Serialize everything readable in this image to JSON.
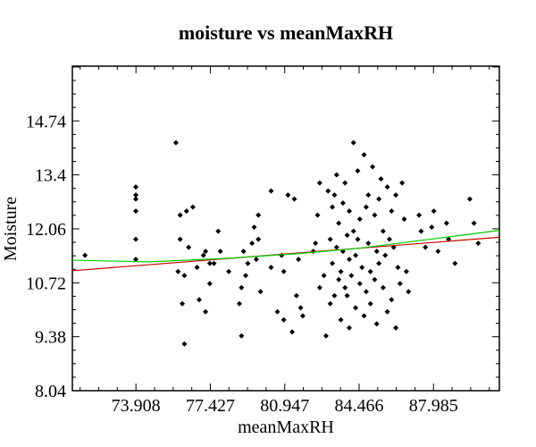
{
  "chart_data": {
    "type": "scatter",
    "title": "moisture vs meanMaxRH",
    "xlabel": "meanMaxRH",
    "ylabel": "Moisture",
    "xlim": [
      70.9,
      91.1
    ],
    "ylim": [
      8.04,
      16.1
    ],
    "xticks": [
      73.908,
      77.427,
      80.947,
      84.466,
      87.985
    ],
    "yticks": [
      8.04,
      9.38,
      10.72,
      12.06,
      13.4,
      14.74
    ],
    "grid": false,
    "legend": "none",
    "colors": {
      "points": "#000000",
      "linear_fit": "#cc0000",
      "smooth_fit": "#00cc00",
      "axes": "#000000"
    },
    "series": [
      {
        "kind": "points",
        "x": [
          71.5,
          73.9,
          73.9,
          73.9,
          73.9,
          73.9,
          73.9,
          75.8,
          75.9,
          76.0,
          76.0,
          76.1,
          76.2,
          76.2,
          76.3,
          76.4,
          76.6,
          76.8,
          76.9,
          77.1,
          77.2,
          77.2,
          77.4,
          77.4,
          77.6,
          77.8,
          77.9,
          78.3,
          78.8,
          78.9,
          78.9,
          79.0,
          79.1,
          79.2,
          79.4,
          79.5,
          79.6,
          79.7,
          79.7,
          79.8,
          80.3,
          80.3,
          80.6,
          80.8,
          80.9,
          80.9,
          81.1,
          81.3,
          81.4,
          81.5,
          81.6,
          81.7,
          81.8,
          82.3,
          82.4,
          82.5,
          82.6,
          82.6,
          82.8,
          82.9,
          83.0,
          83.1,
          83.1,
          83.2,
          83.2,
          83.3,
          83.3,
          83.4,
          83.4,
          83.5,
          83.5,
          83.6,
          83.6,
          83.7,
          83.7,
          83.8,
          83.8,
          83.9,
          83.9,
          84.0,
          84.0,
          84.0,
          84.1,
          84.2,
          84.2,
          84.3,
          84.3,
          84.4,
          84.4,
          84.5,
          84.5,
          84.6,
          84.7,
          84.7,
          84.8,
          84.8,
          84.9,
          84.9,
          85.0,
          85.0,
          85.1,
          85.2,
          85.2,
          85.3,
          85.3,
          85.4,
          85.4,
          85.5,
          85.6,
          85.6,
          85.7,
          85.8,
          85.8,
          85.9,
          86.0,
          86.0,
          86.1,
          86.2,
          86.2,
          86.3,
          86.4,
          86.5,
          86.6,
          86.7,
          86.8,
          87.3,
          87.4,
          87.6,
          87.9,
          88.0,
          88.2,
          88.6,
          88.7,
          89.0,
          89.7,
          89.9,
          90.1
        ],
        "y": [
          11.4,
          12.9,
          13.1,
          12.8,
          12.5,
          11.8,
          11.3,
          14.2,
          11.0,
          12.4,
          11.8,
          10.2,
          9.2,
          10.9,
          12.5,
          11.6,
          12.6,
          11.1,
          10.3,
          11.4,
          10.0,
          11.5,
          11.2,
          10.7,
          11.2,
          12.0,
          11.5,
          11.0,
          10.2,
          10.6,
          9.4,
          11.5,
          10.9,
          11.2,
          11.7,
          12.1,
          11.3,
          12.4,
          11.8,
          10.5,
          11.1,
          13.0,
          10.0,
          11.4,
          11.0,
          9.8,
          12.9,
          9.5,
          12.8,
          10.4,
          11.3,
          10.1,
          9.9,
          11.5,
          11.7,
          12.4,
          13.2,
          10.6,
          10.9,
          9.4,
          13.0,
          10.2,
          11.8,
          12.6,
          11.2,
          10.4,
          12.9,
          13.4,
          11.6,
          10.8,
          12.2,
          11.0,
          9.8,
          11.5,
          12.7,
          10.6,
          13.2,
          11.9,
          10.4,
          11.3,
          12.5,
          9.6,
          10.9,
          14.2,
          12.0,
          11.4,
          10.1,
          13.5,
          11.8,
          10.7,
          12.3,
          11.1,
          13.9,
          9.9,
          12.6,
          10.5,
          11.7,
          12.9,
          11.0,
          10.2,
          13.6,
          12.4,
          10.8,
          11.5,
          9.7,
          12.8,
          11.2,
          13.3,
          10.6,
          12.0,
          11.4,
          10.0,
          13.1,
          11.8,
          12.5,
          10.3,
          11.6,
          9.6,
          12.9,
          11.1,
          10.7,
          13.2,
          12.3,
          11.0,
          10.5,
          12.4,
          12.0,
          11.6,
          12.1,
          12.5,
          11.5,
          12.2,
          11.8,
          11.2,
          12.8,
          12.2,
          11.7
        ]
      },
      {
        "kind": "linear_fit",
        "x": [
          70.9,
          91.1
        ],
        "y": [
          11.02,
          11.85
        ]
      },
      {
        "kind": "smooth_fit",
        "x": [
          70.9,
          74.5,
          78.0,
          81.5,
          84.5,
          87.5,
          91.1
        ],
        "y": [
          11.28,
          11.24,
          11.32,
          11.44,
          11.58,
          11.78,
          12.02
        ]
      }
    ]
  }
}
